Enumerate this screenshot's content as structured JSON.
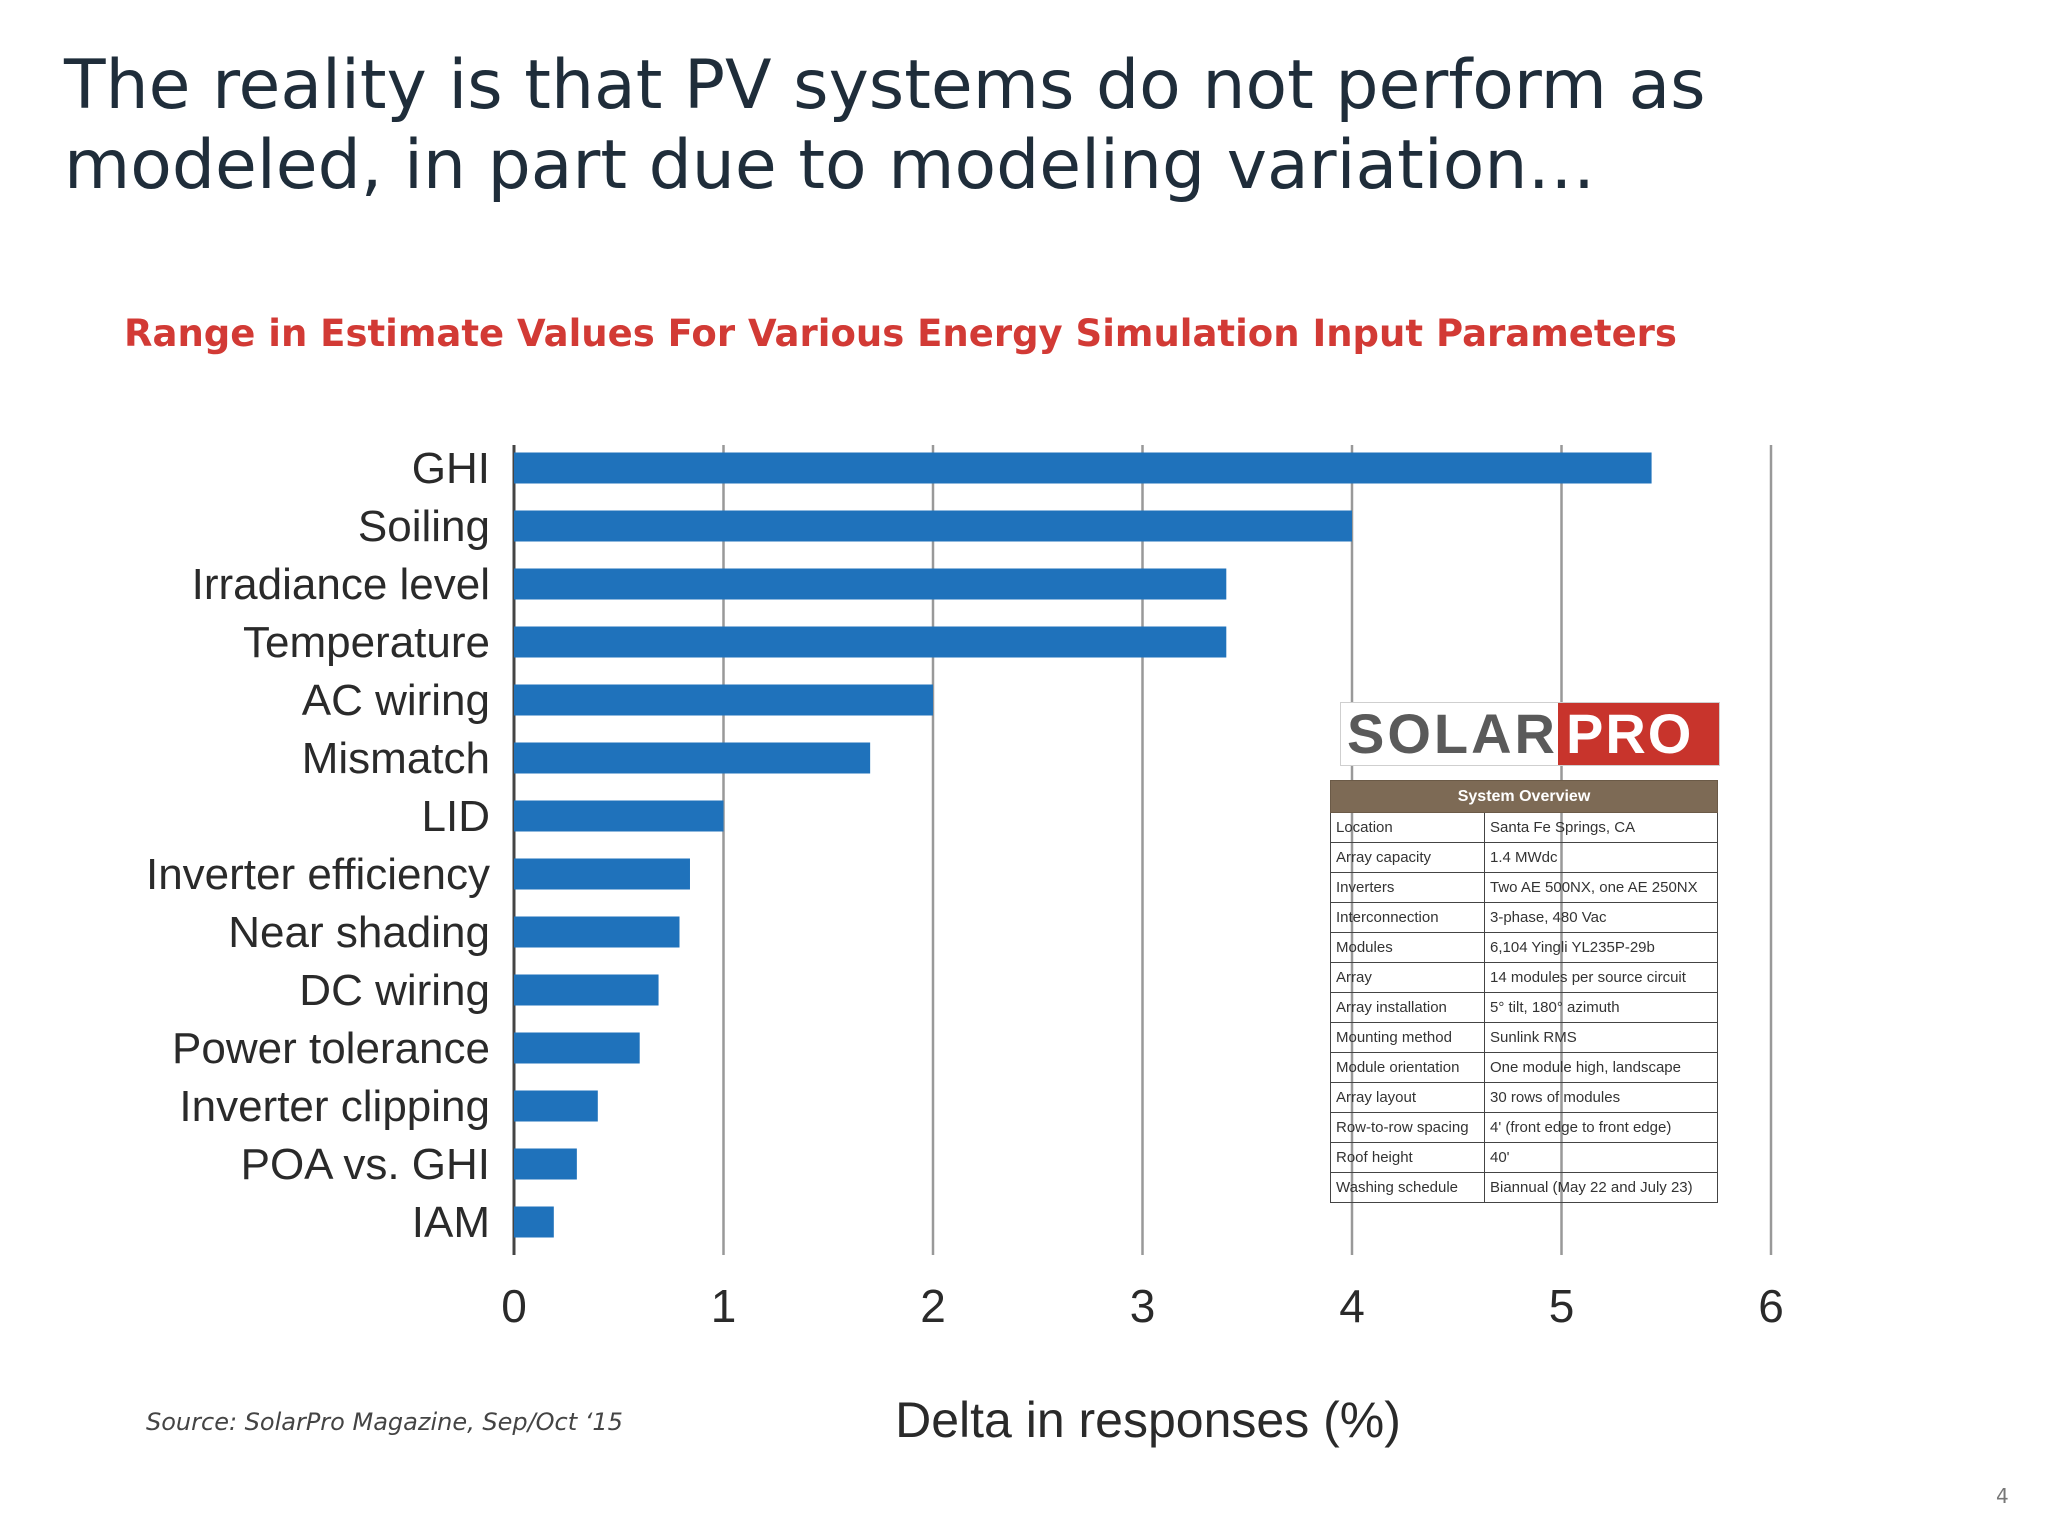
{
  "slide": {
    "title": "The reality is that PV systems do not perform as modeled, in part due to modeling variation…",
    "source": "Source: SolarPro Magazine, Sep/Oct ‘15",
    "page_number": "4"
  },
  "colors": {
    "bar": "#1f72bb",
    "subtitle": "#d23a35",
    "grid": "#999999"
  },
  "chart_data": {
    "type": "bar",
    "orientation": "horizontal",
    "title": "Range in Estimate Values For Various Energy Simulation Input Parameters",
    "xlabel": "Delta in responses (%)",
    "ylabel": "",
    "xlim": [
      0,
      6
    ],
    "xticks": [
      "0",
      "1",
      "2",
      "3",
      "4",
      "5",
      "6"
    ],
    "grid": true,
    "categories": [
      "GHI",
      "Soiling",
      "Irradiance level",
      "Temperature",
      "AC wiring",
      "Mismatch",
      "LID",
      "Inverter efficiency",
      "Near shading",
      "DC wiring",
      "Power tolerance",
      "Inverter clipping",
      "POA vs. GHI",
      "IAM"
    ],
    "values": [
      5.43,
      4.0,
      3.4,
      3.4,
      2.0,
      1.7,
      1.0,
      0.84,
      0.79,
      0.69,
      0.6,
      0.4,
      0.3,
      0.19
    ]
  },
  "system_overview": {
    "logo_left": "SOLAR",
    "logo_right": "PRO",
    "header": "System Overview",
    "rows": [
      {
        "key": "Location",
        "value": "Santa Fe Springs, CA"
      },
      {
        "key": "Array capacity",
        "value": "1.4 MWdc"
      },
      {
        "key": "Inverters",
        "value": "Two AE 500NX, one AE 250NX"
      },
      {
        "key": "Interconnection",
        "value": "3-phase, 480 Vac"
      },
      {
        "key": "Modules",
        "value": "6,104 Yingli YL235P-29b"
      },
      {
        "key": "Array",
        "value": "14 modules per source circuit"
      },
      {
        "key": "Array installation",
        "value": "5° tilt, 180° azimuth"
      },
      {
        "key": "Mounting method",
        "value": "Sunlink RMS"
      },
      {
        "key": "Module orientation",
        "value": "One module high, landscape"
      },
      {
        "key": "Array layout",
        "value": "30 rows of modules"
      },
      {
        "key": "Row-to-row spacing",
        "value": "4' (front edge to front edge)"
      },
      {
        "key": "Roof height",
        "value": "40'"
      },
      {
        "key": "Washing schedule",
        "value": "Biannual (May 22 and July 23)"
      }
    ]
  }
}
